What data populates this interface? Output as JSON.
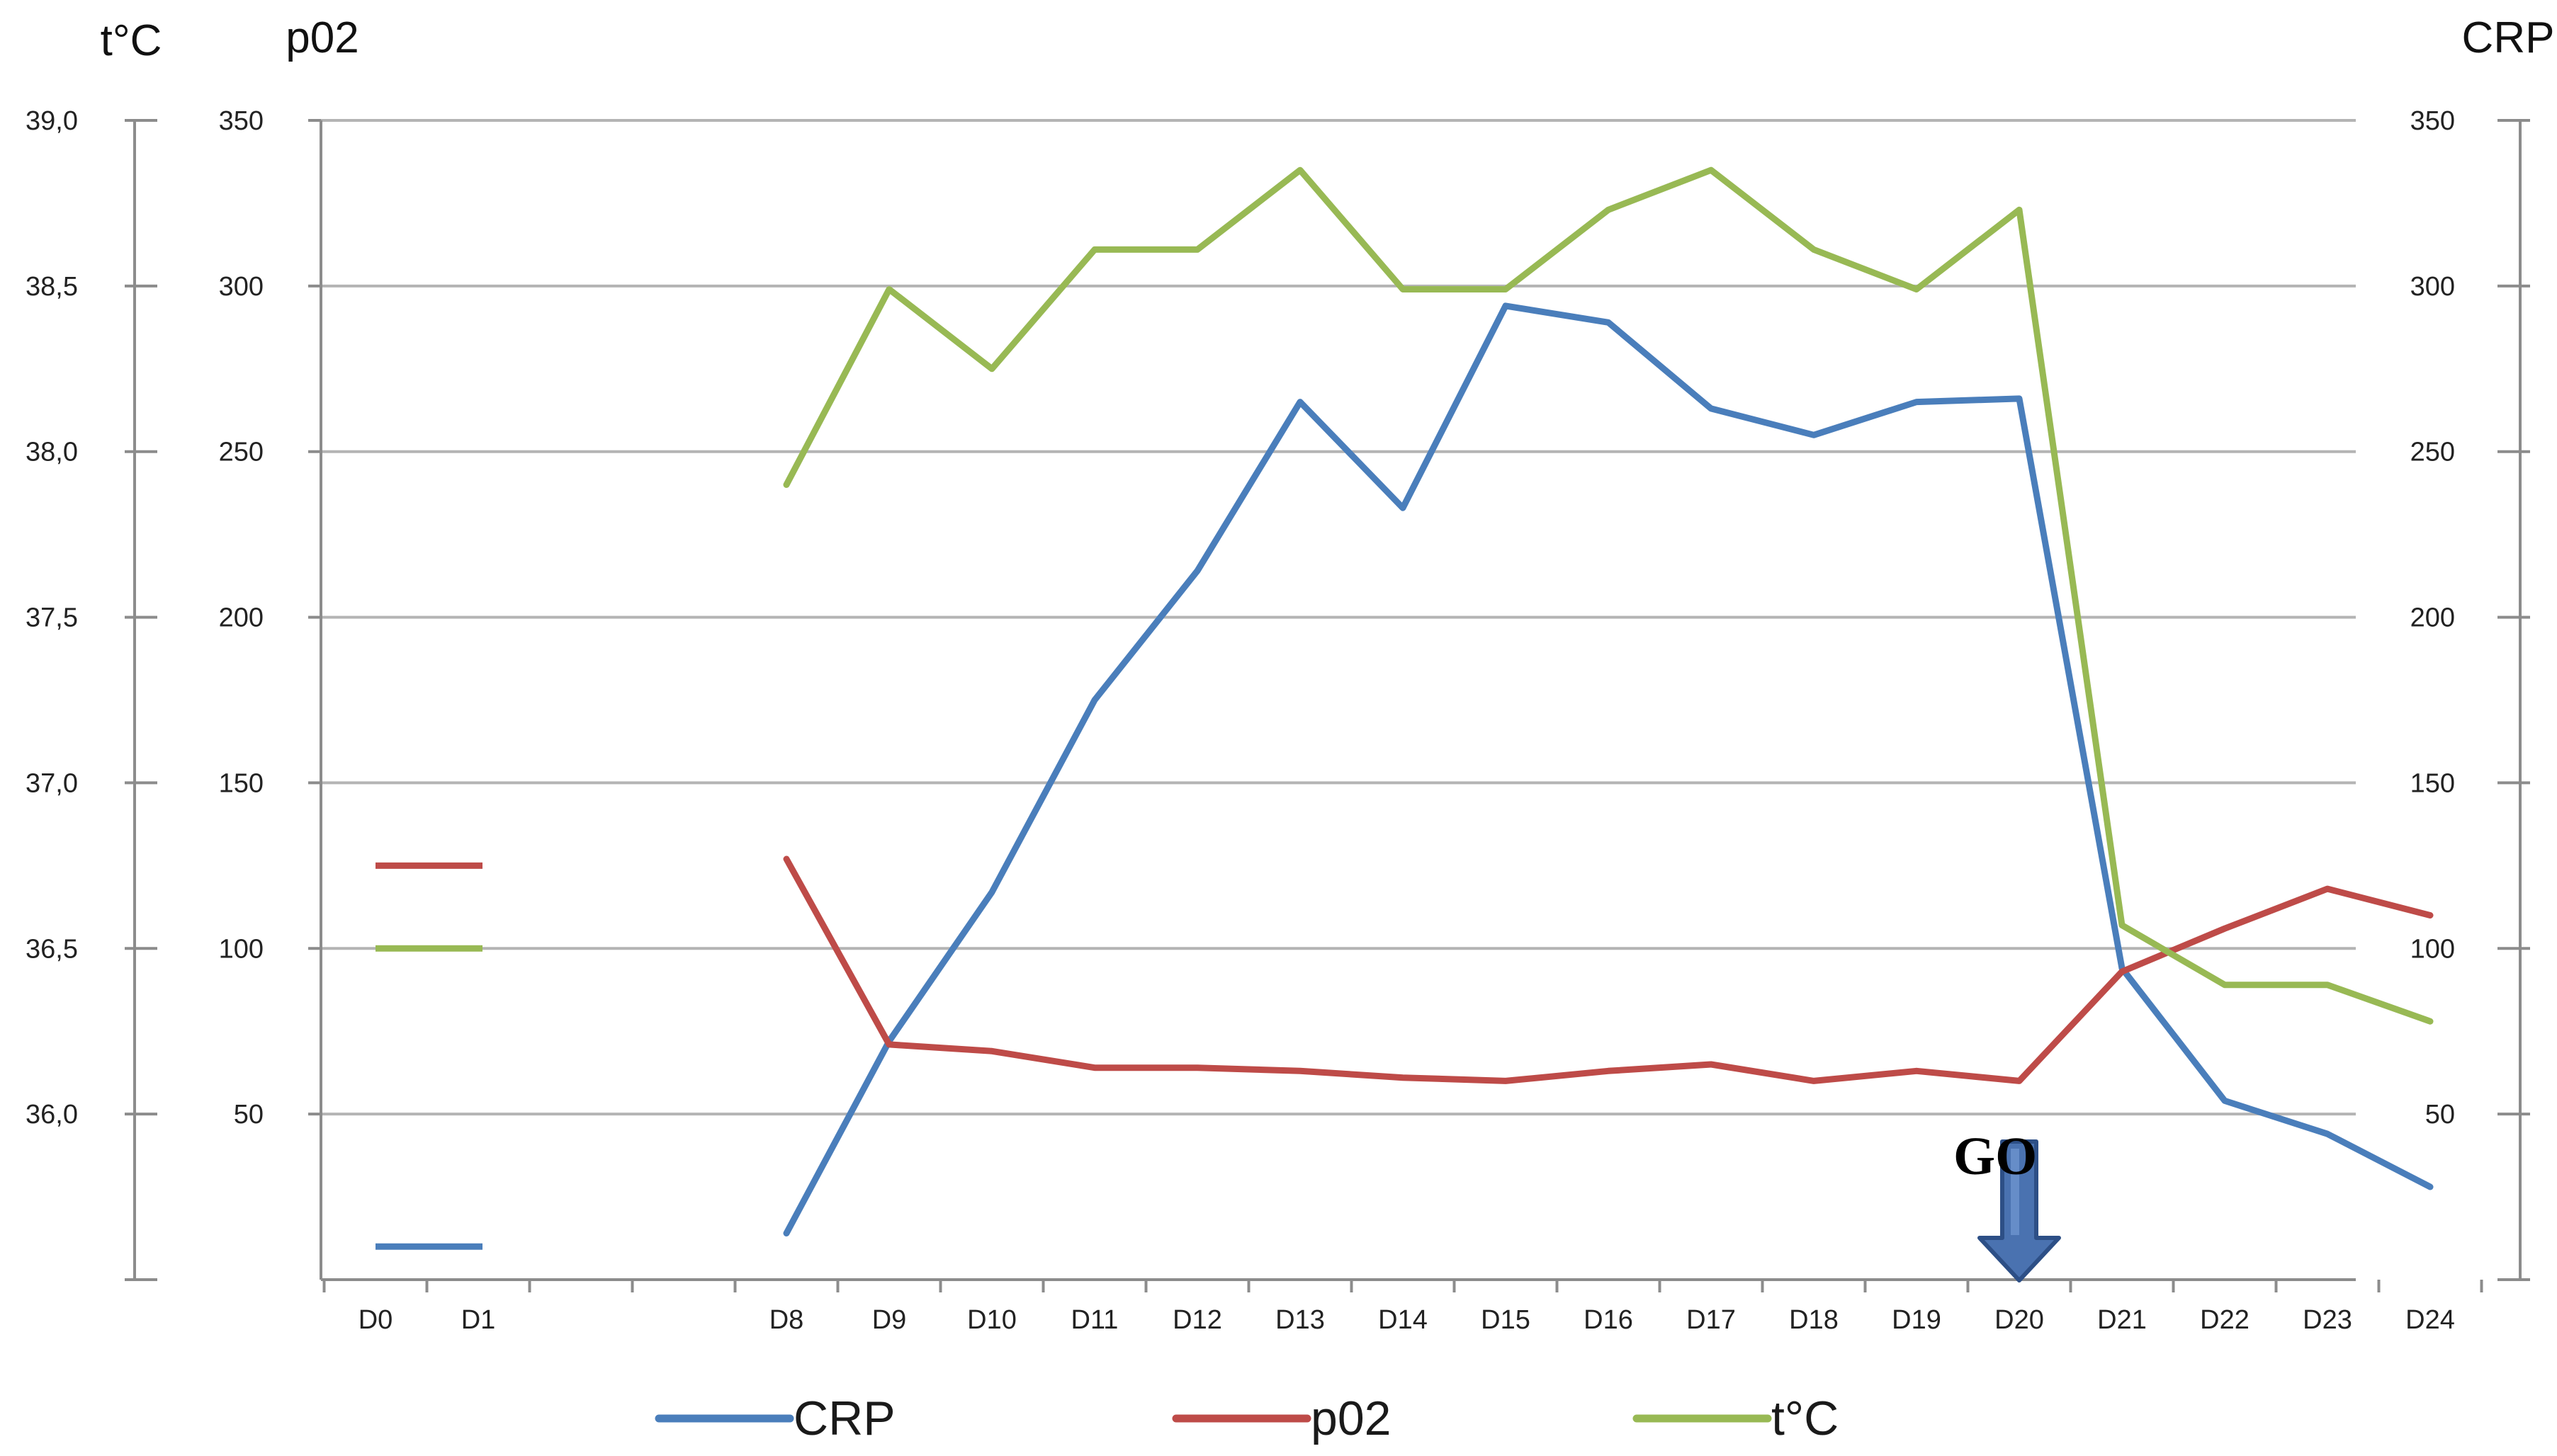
{
  "chart_data": {
    "type": "line",
    "axes": {
      "left_temp": {
        "title": "t°C",
        "ylim": [
          35.5,
          39.0
        ],
        "ticks": [
          "39,0",
          "38,5",
          "38,0",
          "37,5",
          "37,0",
          "36,5",
          "36,0"
        ]
      },
      "left_po2": {
        "title": "p02",
        "ylim": [
          0,
          350
        ],
        "ticks": [
          "350",
          "300",
          "250",
          "200",
          "150",
          "100",
          "50"
        ]
      },
      "right_crp": {
        "title": "CRP",
        "ylim": [
          0,
          350
        ],
        "ticks": [
          "350",
          "300",
          "250",
          "200",
          "150",
          "100",
          "50"
        ]
      }
    },
    "categories": [
      "D0",
      "D1",
      "",
      "",
      "D8",
      "D9",
      "D10",
      "D11",
      "D12",
      "D13",
      "D14",
      "D15",
      "D16",
      "D17",
      "D18",
      "D19",
      "D20",
      "D21",
      "D22",
      "D23",
      "D24"
    ],
    "grid": true,
    "legend_position": "bottom",
    "series": [
      {
        "name": "CRP",
        "axis": "right_crp",
        "color": "#4a7ebb",
        "values": [
          10,
          10,
          null,
          null,
          14,
          72,
          117,
          175,
          214,
          265,
          233,
          294,
          289,
          263,
          255,
          265,
          266,
          94,
          54,
          44,
          28
        ]
      },
      {
        "name": "p02",
        "axis": "left_po2",
        "color": "#be4b48",
        "values": [
          125,
          125,
          null,
          null,
          127,
          71,
          69,
          64,
          64,
          63,
          61,
          60,
          63,
          65,
          60,
          63,
          60,
          93,
          106,
          118,
          110
        ]
      },
      {
        "name": "t°C",
        "axis": "left_temp",
        "color": "#98b954",
        "values": [
          36.5,
          36.5,
          null,
          null,
          37.9,
          38.49,
          38.25,
          38.61,
          38.61,
          38.85,
          38.49,
          38.49,
          38.73,
          38.85,
          38.61,
          38.49,
          38.73,
          36.57,
          36.39,
          36.39,
          36.28
        ]
      }
    ],
    "annotation": {
      "label": "GO",
      "category": "D20",
      "arrow_color": "#4a72b0",
      "arrow_outline": "#2d4f86"
    }
  }
}
